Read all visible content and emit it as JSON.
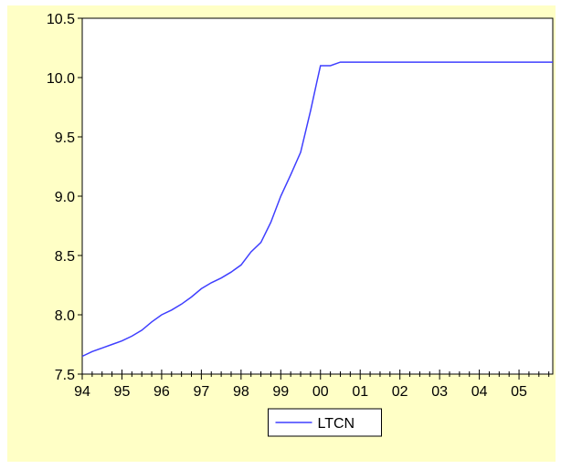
{
  "chart_data": {
    "type": "line",
    "title": "",
    "xlabel": "",
    "ylabel": "",
    "x_tick_labels": [
      "94",
      "95",
      "96",
      "97",
      "98",
      "99",
      "00",
      "01",
      "02",
      "03",
      "04",
      "05"
    ],
    "y_tick_labels": [
      "7.5",
      "8.0",
      "8.5",
      "9.0",
      "9.5",
      "10.0",
      "10.5"
    ],
    "xlim": [
      1994,
      2005.85
    ],
    "ylim": [
      7.5,
      10.5
    ],
    "grid": false,
    "legend_position": "bottom-center",
    "series": [
      {
        "name": "LTCN",
        "color": "#3F3FFF",
        "x": [
          1994.0,
          1994.25,
          1994.5,
          1994.75,
          1995.0,
          1995.25,
          1995.5,
          1995.75,
          1996.0,
          1996.25,
          1996.5,
          1996.75,
          1997.0,
          1997.25,
          1997.5,
          1997.75,
          1998.0,
          1998.25,
          1998.5,
          1998.75,
          1999.0,
          1999.25,
          1999.5,
          1999.75,
          1999.9,
          2000.0,
          2000.25,
          2000.5,
          2001.0,
          2002.0,
          2003.0,
          2004.0,
          2005.0,
          2005.85
        ],
        "y": [
          7.65,
          7.69,
          7.72,
          7.75,
          7.78,
          7.82,
          7.87,
          7.94,
          8.0,
          8.04,
          8.09,
          8.15,
          8.22,
          8.27,
          8.31,
          8.36,
          8.42,
          8.53,
          8.61,
          8.78,
          9.0,
          9.18,
          9.37,
          9.72,
          9.95,
          10.1,
          10.1,
          10.13,
          10.13,
          10.13,
          10.13,
          10.13,
          10.13,
          10.13
        ]
      }
    ]
  }
}
